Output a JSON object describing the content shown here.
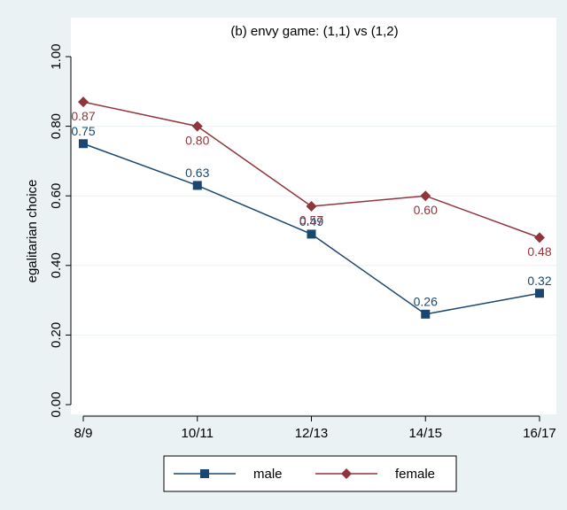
{
  "chart_data": {
    "type": "line",
    "title": "(b) envy game: (1,1) vs (1,2)",
    "y_label": "egalitarian choice",
    "categories": [
      "8/9",
      "10/11",
      "12/13",
      "14/15",
      "16/17"
    ],
    "series": [
      {
        "name": "male",
        "color": "#1a476f",
        "marker": "square",
        "values": [
          0.75,
          0.63,
          0.49,
          0.26,
          0.32
        ],
        "value_labels": [
          "0.75",
          "0.63",
          "0.49",
          "0.26",
          "0.32"
        ]
      },
      {
        "name": "female",
        "color": "#90353b",
        "marker": "diamond",
        "values": [
          0.87,
          0.8,
          0.57,
          0.6,
          0.48
        ],
        "value_labels": [
          "0.87",
          "0.80",
          "0.57",
          "0.60",
          "0.48"
        ]
      }
    ],
    "ylim": [
      0,
      1
    ],
    "yticks": [
      {
        "value": 0,
        "label": "0.00"
      },
      {
        "value": 0.2,
        "label": "0.20"
      },
      {
        "value": 0.4,
        "label": "0.40"
      },
      {
        "value": 0.6,
        "label": "0.60"
      },
      {
        "value": 0.8,
        "label": "0.80"
      },
      {
        "value": 1,
        "label": "1.00"
      }
    ],
    "grid": true,
    "legend": "bottom"
  }
}
